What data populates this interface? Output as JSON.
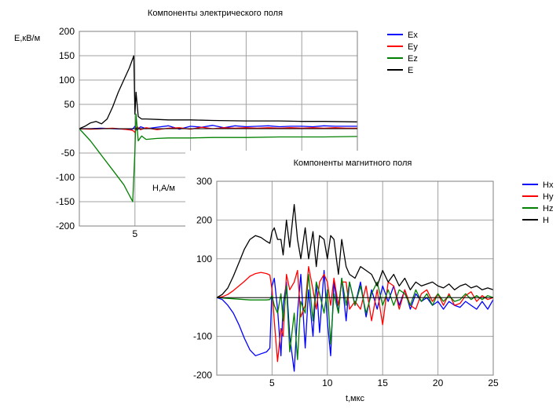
{
  "chart_data": [
    {
      "title": "Компоненты электрического поля",
      "type": "line",
      "ylabel": "E,кВ/м",
      "xlabel": "",
      "ylim": [
        -200,
        200
      ],
      "y_ticks": [
        "200",
        "150",
        "100",
        "50",
        "-50",
        "-100",
        "-150",
        "-200"
      ],
      "x_ticks": [
        "5"
      ],
      "legend_position": "right",
      "grid": true,
      "series": [
        {
          "name": "Ex",
          "color": "#0000ff",
          "x": [
            0,
            1,
            2,
            3,
            4,
            4.7,
            4.9,
            5.0,
            5.2,
            5.5,
            6,
            7,
            8,
            9,
            10,
            11,
            12,
            13,
            14,
            15,
            16,
            17,
            18,
            19,
            20,
            21,
            22,
            23,
            24,
            25
          ],
          "y": [
            0,
            0,
            1,
            0,
            -1,
            -2,
            2,
            5,
            -3,
            4,
            0,
            3,
            6,
            -1,
            5,
            3,
            7,
            2,
            6,
            4,
            5,
            6,
            4,
            5,
            5,
            4,
            6,
            5,
            5,
            5
          ]
        },
        {
          "name": "Ey",
          "color": "#ff0000",
          "x": [
            0,
            1,
            2,
            3,
            4,
            4.7,
            4.9,
            5.0,
            5.2,
            5.5,
            6,
            7,
            8,
            9,
            10,
            11,
            12,
            13,
            14,
            15,
            16,
            17,
            18,
            19,
            20,
            21,
            22,
            23,
            24,
            25
          ],
          "y": [
            0,
            -1,
            0,
            1,
            -1,
            -3,
            -5,
            -8,
            4,
            -2,
            2,
            -2,
            1,
            2,
            -1,
            3,
            0,
            2,
            1,
            2,
            1,
            2,
            1,
            2,
            1,
            2,
            1,
            2,
            1,
            1
          ]
        },
        {
          "name": "Ez",
          "color": "#008000",
          "x": [
            0,
            1,
            2,
            3,
            4,
            4.8,
            5.0,
            5.1,
            5.3,
            5.6,
            6,
            7,
            8,
            10,
            12,
            15,
            18,
            20,
            22,
            25
          ],
          "y": [
            0,
            -25,
            -55,
            -85,
            -115,
            -150,
            -45,
            30,
            -25,
            -15,
            -22,
            -20,
            -19,
            -19,
            -18,
            -18,
            -17,
            -17,
            -17,
            -16
          ]
        },
        {
          "name": "E",
          "color": "#000000",
          "x": [
            0,
            0.5,
            1,
            1.5,
            2,
            2.5,
            3,
            3.5,
            4,
            4.5,
            4.9,
            5.0,
            5.1,
            5.2,
            5.3,
            5.6,
            6,
            7,
            8,
            10,
            12,
            15,
            18,
            20,
            22,
            25
          ],
          "y": [
            0,
            5,
            12,
            15,
            10,
            20,
            45,
            75,
            100,
            125,
            150,
            30,
            75,
            50,
            25,
            20,
            20,
            19,
            18,
            18,
            17,
            16,
            16,
            15,
            15,
            14
          ]
        }
      ]
    },
    {
      "title": "Компоненты магнитного поля",
      "type": "line",
      "ylabel": "H,А/м",
      "xlabel": "t,мкс",
      "ylim": [
        -200,
        300
      ],
      "xlim": [
        0,
        25
      ],
      "y_ticks": [
        "300",
        "200",
        "100",
        "-100",
        "-200"
      ],
      "x_ticks": [
        "5",
        "10",
        "15",
        "20",
        "25"
      ],
      "legend_position": "right",
      "grid": true,
      "series": [
        {
          "name": "Hx",
          "color": "#0000ff",
          "x": [
            0,
            0.5,
            1,
            1.5,
            2,
            2.5,
            3,
            3.5,
            4,
            4.5,
            4.8,
            5,
            5.2,
            5.5,
            5.8,
            6,
            6.3,
            6.6,
            7,
            7.3,
            7.6,
            8,
            8.3,
            8.7,
            9,
            9.3,
            9.7,
            10,
            10.3,
            10.6,
            11,
            11.3,
            11.7,
            12,
            12.5,
            13,
            13.5,
            14,
            14.5,
            15,
            15.5,
            16,
            16.5,
            17,
            17.5,
            18,
            18.5,
            19,
            19.5,
            20,
            20.5,
            21,
            21.5,
            22,
            22.5,
            23,
            23.5,
            24,
            24.5,
            25
          ],
          "y": [
            0,
            -5,
            -20,
            -40,
            -70,
            -105,
            -135,
            -150,
            -145,
            -140,
            -130,
            30,
            50,
            -30,
            -150,
            -20,
            40,
            -100,
            -190,
            -40,
            60,
            -130,
            20,
            -100,
            40,
            -90,
            70,
            -60,
            -150,
            40,
            -40,
            50,
            -60,
            40,
            -20,
            40,
            -50,
            20,
            -30,
            30,
            -10,
            30,
            -20,
            20,
            -30,
            10,
            -10,
            0,
            -20,
            -10,
            -30,
            -10,
            -20,
            -25,
            -10,
            -20,
            -30,
            -10,
            -30,
            -5
          ]
        },
        {
          "name": "Hy",
          "color": "#ff0000",
          "x": [
            0,
            0.5,
            1,
            1.5,
            2,
            2.5,
            3,
            3.5,
            4,
            4.5,
            4.8,
            5,
            5.2,
            5.5,
            5.8,
            6,
            6.3,
            6.6,
            7,
            7.3,
            7.6,
            8,
            8.3,
            8.7,
            9,
            9.3,
            9.7,
            10,
            10.3,
            10.6,
            11,
            11.3,
            11.7,
            12,
            12.5,
            13,
            13.5,
            14,
            14.5,
            15,
            15.5,
            16,
            16.5,
            17,
            17.5,
            18,
            18.5,
            19,
            19.5,
            20,
            20.5,
            21,
            21.5,
            22,
            22.5,
            23,
            23.5,
            24,
            24.5,
            25
          ],
          "y": [
            0,
            2,
            8,
            18,
            30,
            42,
            55,
            62,
            65,
            62,
            58,
            20,
            -60,
            -165,
            -80,
            -100,
            60,
            20,
            40,
            70,
            -50,
            -20,
            80,
            20,
            -30,
            40,
            60,
            40,
            -20,
            50,
            -20,
            40,
            40,
            -30,
            -10,
            -30,
            30,
            -60,
            20,
            -70,
            40,
            30,
            -30,
            20,
            -20,
            -30,
            10,
            20,
            -10,
            10,
            -20,
            10,
            -20,
            -15,
            5,
            15,
            -10,
            5,
            -5,
            0
          ]
        },
        {
          "name": "Hz",
          "color": "#008000",
          "x": [
            0,
            0.5,
            1,
            1.5,
            2,
            2.5,
            3,
            3.5,
            4,
            4.5,
            4.8,
            5,
            5.2,
            5.5,
            5.8,
            6,
            6.3,
            6.6,
            7,
            7.3,
            7.6,
            8,
            8.3,
            8.7,
            9,
            9.3,
            9.7,
            10,
            10.3,
            10.6,
            11,
            11.3,
            11.7,
            12,
            12.5,
            13,
            13.5,
            14,
            14.5,
            15,
            15.5,
            16,
            16.5,
            17,
            17.5,
            18,
            18.5,
            19,
            19.5,
            20,
            20.5,
            21,
            21.5,
            22,
            22.5,
            23,
            23.5,
            24,
            24.5,
            25
          ],
          "y": [
            0,
            -1,
            -2,
            -3,
            -4,
            -5,
            -6,
            -6,
            -6,
            -6,
            -5,
            5,
            -20,
            -40,
            10,
            -60,
            30,
            -140,
            -40,
            -160,
            -10,
            -40,
            60,
            -60,
            40,
            10,
            -40,
            20,
            -120,
            10,
            -40,
            50,
            -20,
            40,
            -20,
            30,
            -40,
            10,
            40,
            -20,
            20,
            -20,
            20,
            10,
            -20,
            20,
            -10,
            10,
            -20,
            10,
            -10,
            5,
            -10,
            -5,
            10,
            -5,
            5,
            -5,
            5,
            0
          ]
        },
        {
          "name": "H",
          "color": "#000000",
          "x": [
            0,
            0.5,
            1,
            1.5,
            2,
            2.5,
            3,
            3.5,
            4,
            4.5,
            4.8,
            5,
            5.2,
            5.5,
            5.8,
            6,
            6.3,
            6.6,
            7,
            7.3,
            7.6,
            8,
            8.3,
            8.7,
            9,
            9.3,
            9.7,
            10,
            10.3,
            10.6,
            11,
            11.3,
            11.7,
            12,
            12.5,
            13,
            13.5,
            14,
            14.5,
            15,
            15.5,
            16,
            16.5,
            17,
            17.5,
            18,
            18.5,
            19,
            19.5,
            20,
            20.5,
            21,
            21.5,
            22,
            22.5,
            23,
            23.5,
            24,
            24.5,
            25
          ],
          "y": [
            0,
            8,
            25,
            55,
            90,
            125,
            150,
            160,
            155,
            145,
            140,
            170,
            180,
            150,
            150,
            110,
            200,
            130,
            240,
            150,
            100,
            180,
            100,
            170,
            80,
            160,
            150,
            100,
            160,
            150,
            60,
            150,
            80,
            60,
            50,
            80,
            70,
            60,
            30,
            70,
            40,
            60,
            30,
            50,
            20,
            40,
            30,
            35,
            40,
            30,
            25,
            35,
            20,
            30,
            35,
            25,
            30,
            20,
            25,
            20
          ]
        }
      ]
    }
  ]
}
